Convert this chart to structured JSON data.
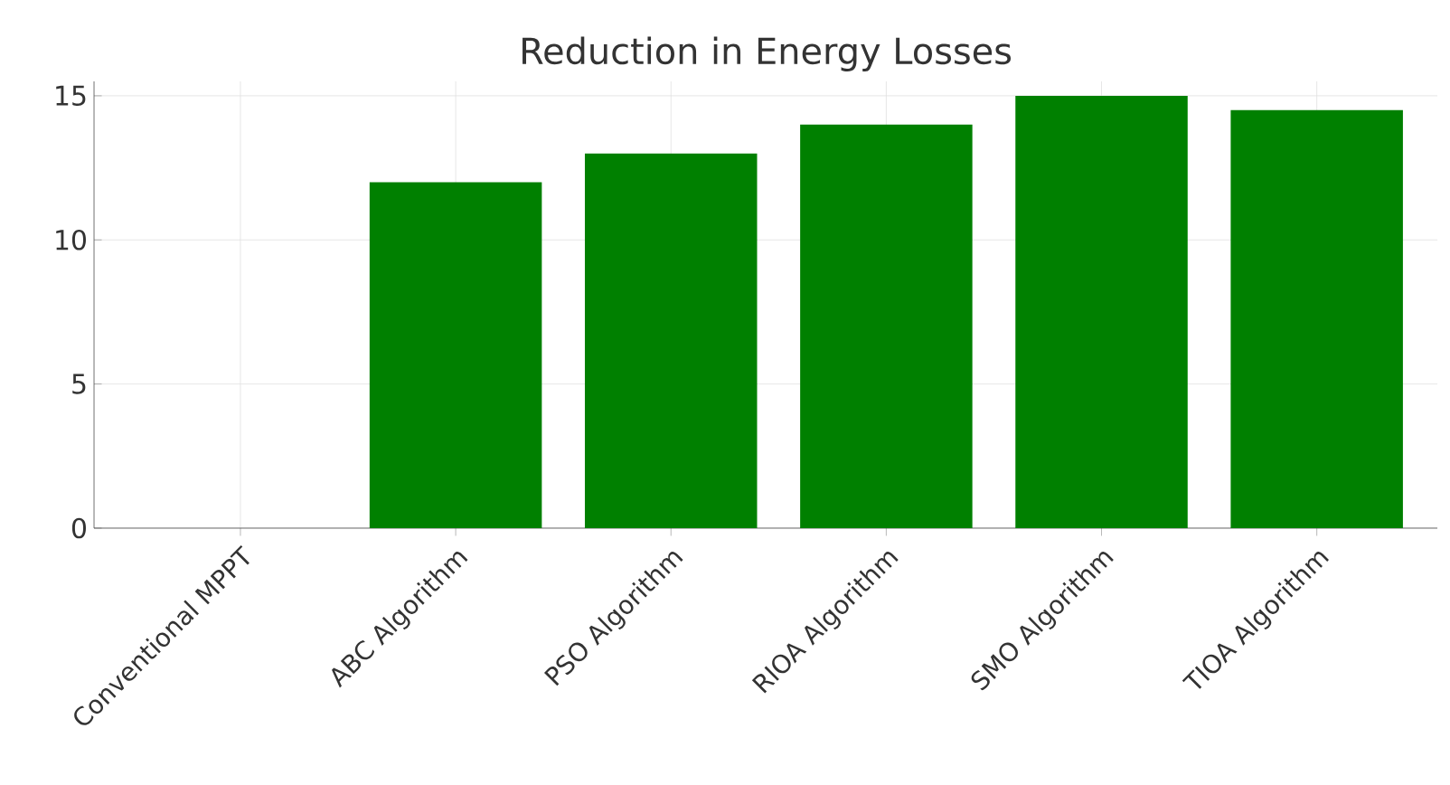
{
  "chart_data": {
    "type": "bar",
    "title": "Reduction in Energy Losses",
    "categories": [
      "Conventional MPPT",
      "ABC Algorithm",
      "PSO Algorithm",
      "RIOA Algorithm",
      "SMO Algorithm",
      "TIOA Algorithm"
    ],
    "values": [
      0,
      12,
      13,
      14,
      15,
      14.5
    ],
    "color": "#008000",
    "ylim": [
      0,
      15.5
    ],
    "yticks": [
      0,
      5,
      10,
      15
    ],
    "grid": true
  }
}
